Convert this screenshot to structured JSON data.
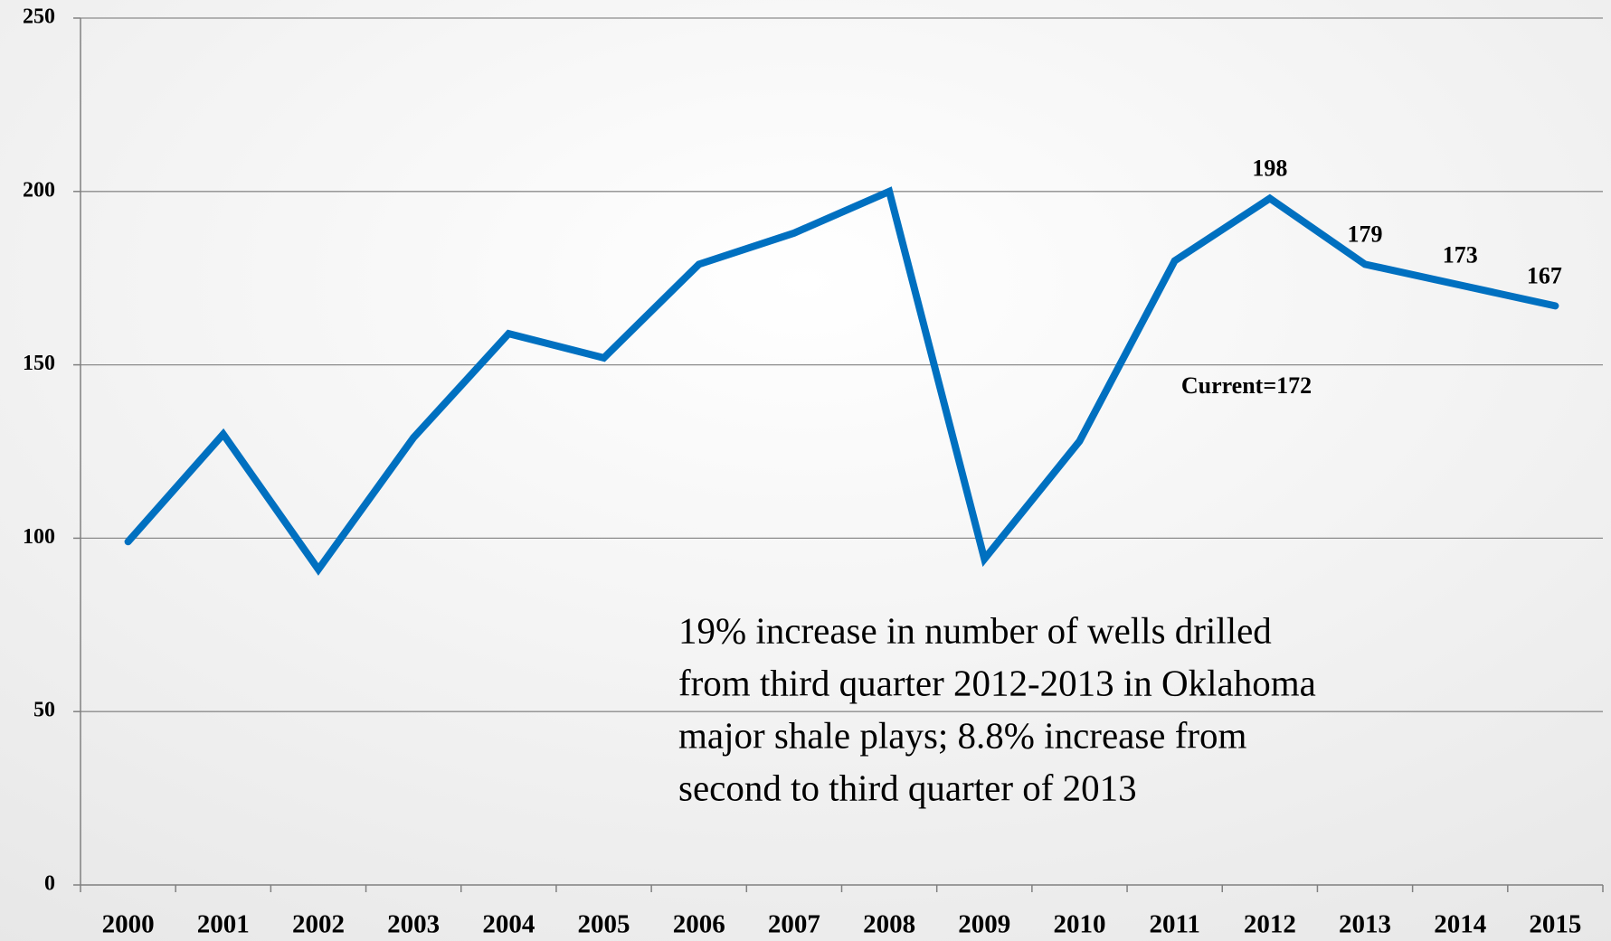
{
  "chart_data": {
    "type": "line",
    "categories": [
      "2000",
      "2001",
      "2002",
      "2003",
      "2004",
      "2005",
      "2006",
      "2007",
      "2008",
      "2009",
      "2010",
      "2011",
      "2012",
      "2013",
      "2014",
      "2015"
    ],
    "values": [
      99,
      130,
      91,
      129,
      159,
      152,
      179,
      188,
      200,
      94,
      128,
      180,
      198,
      179,
      173,
      167
    ],
    "value_labels": [
      null,
      null,
      null,
      null,
      null,
      null,
      null,
      null,
      null,
      null,
      null,
      null,
      "198",
      "179",
      "173",
      "167"
    ],
    "color": "#0070c0",
    "ylim": [
      0,
      250
    ],
    "yticks": [
      0,
      50,
      100,
      150,
      200,
      250
    ],
    "grid": true,
    "annotations": {
      "current": "Current=172",
      "note": [
        "19% increase in number of wells drilled",
        "from third quarter 2012-2013 in Oklahoma",
        "major shale plays; 8.8% increase from",
        "second to third quarter of 2013"
      ]
    }
  }
}
